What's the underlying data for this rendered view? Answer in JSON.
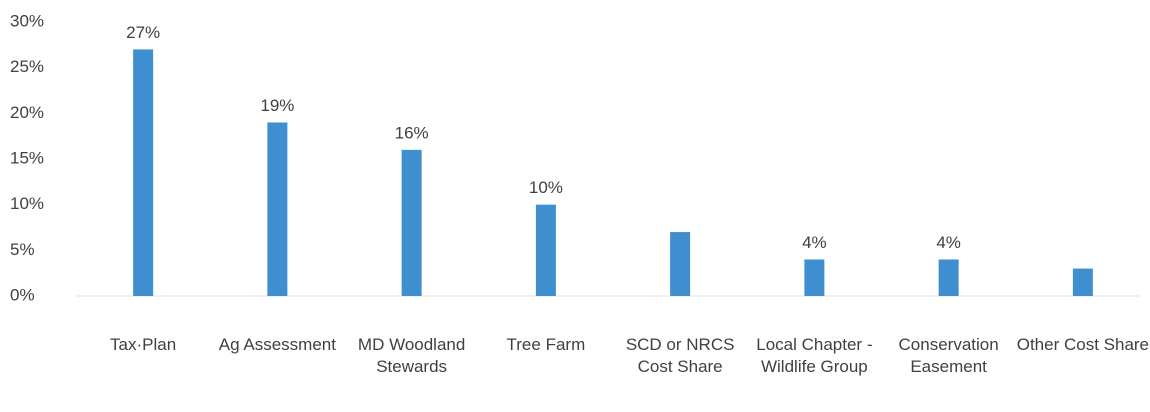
{
  "chart_data": {
    "type": "bar",
    "categories": [
      "Tax·Plan",
      "Ag Assessment",
      "MD Woodland Stewards",
      "Tree Farm",
      "SCD or NRCS Cost Share",
      "Local Chapter -Wildlife Group",
      "Conservation Easement",
      "Other Cost Share"
    ],
    "values": [
      27,
      19,
      16,
      10,
      7,
      4,
      4,
      3
    ],
    "value_labels": [
      "27%",
      "19%",
      "16%",
      "10%",
      null,
      "4%",
      "4%",
      null
    ],
    "color": "#3f8fd0",
    "ylim": [
      0,
      30
    ],
    "yticks": [
      {
        "value": 0,
        "label": "0%"
      },
      {
        "value": 5,
        "label": "5%"
      },
      {
        "value": 10,
        "label": "10%"
      },
      {
        "value": 15,
        "label": "15%"
      },
      {
        "value": 20,
        "label": "20%"
      },
      {
        "value": 25,
        "label": "25%"
      },
      {
        "value": 30,
        "label": "30%"
      }
    ],
    "grid": false
  }
}
